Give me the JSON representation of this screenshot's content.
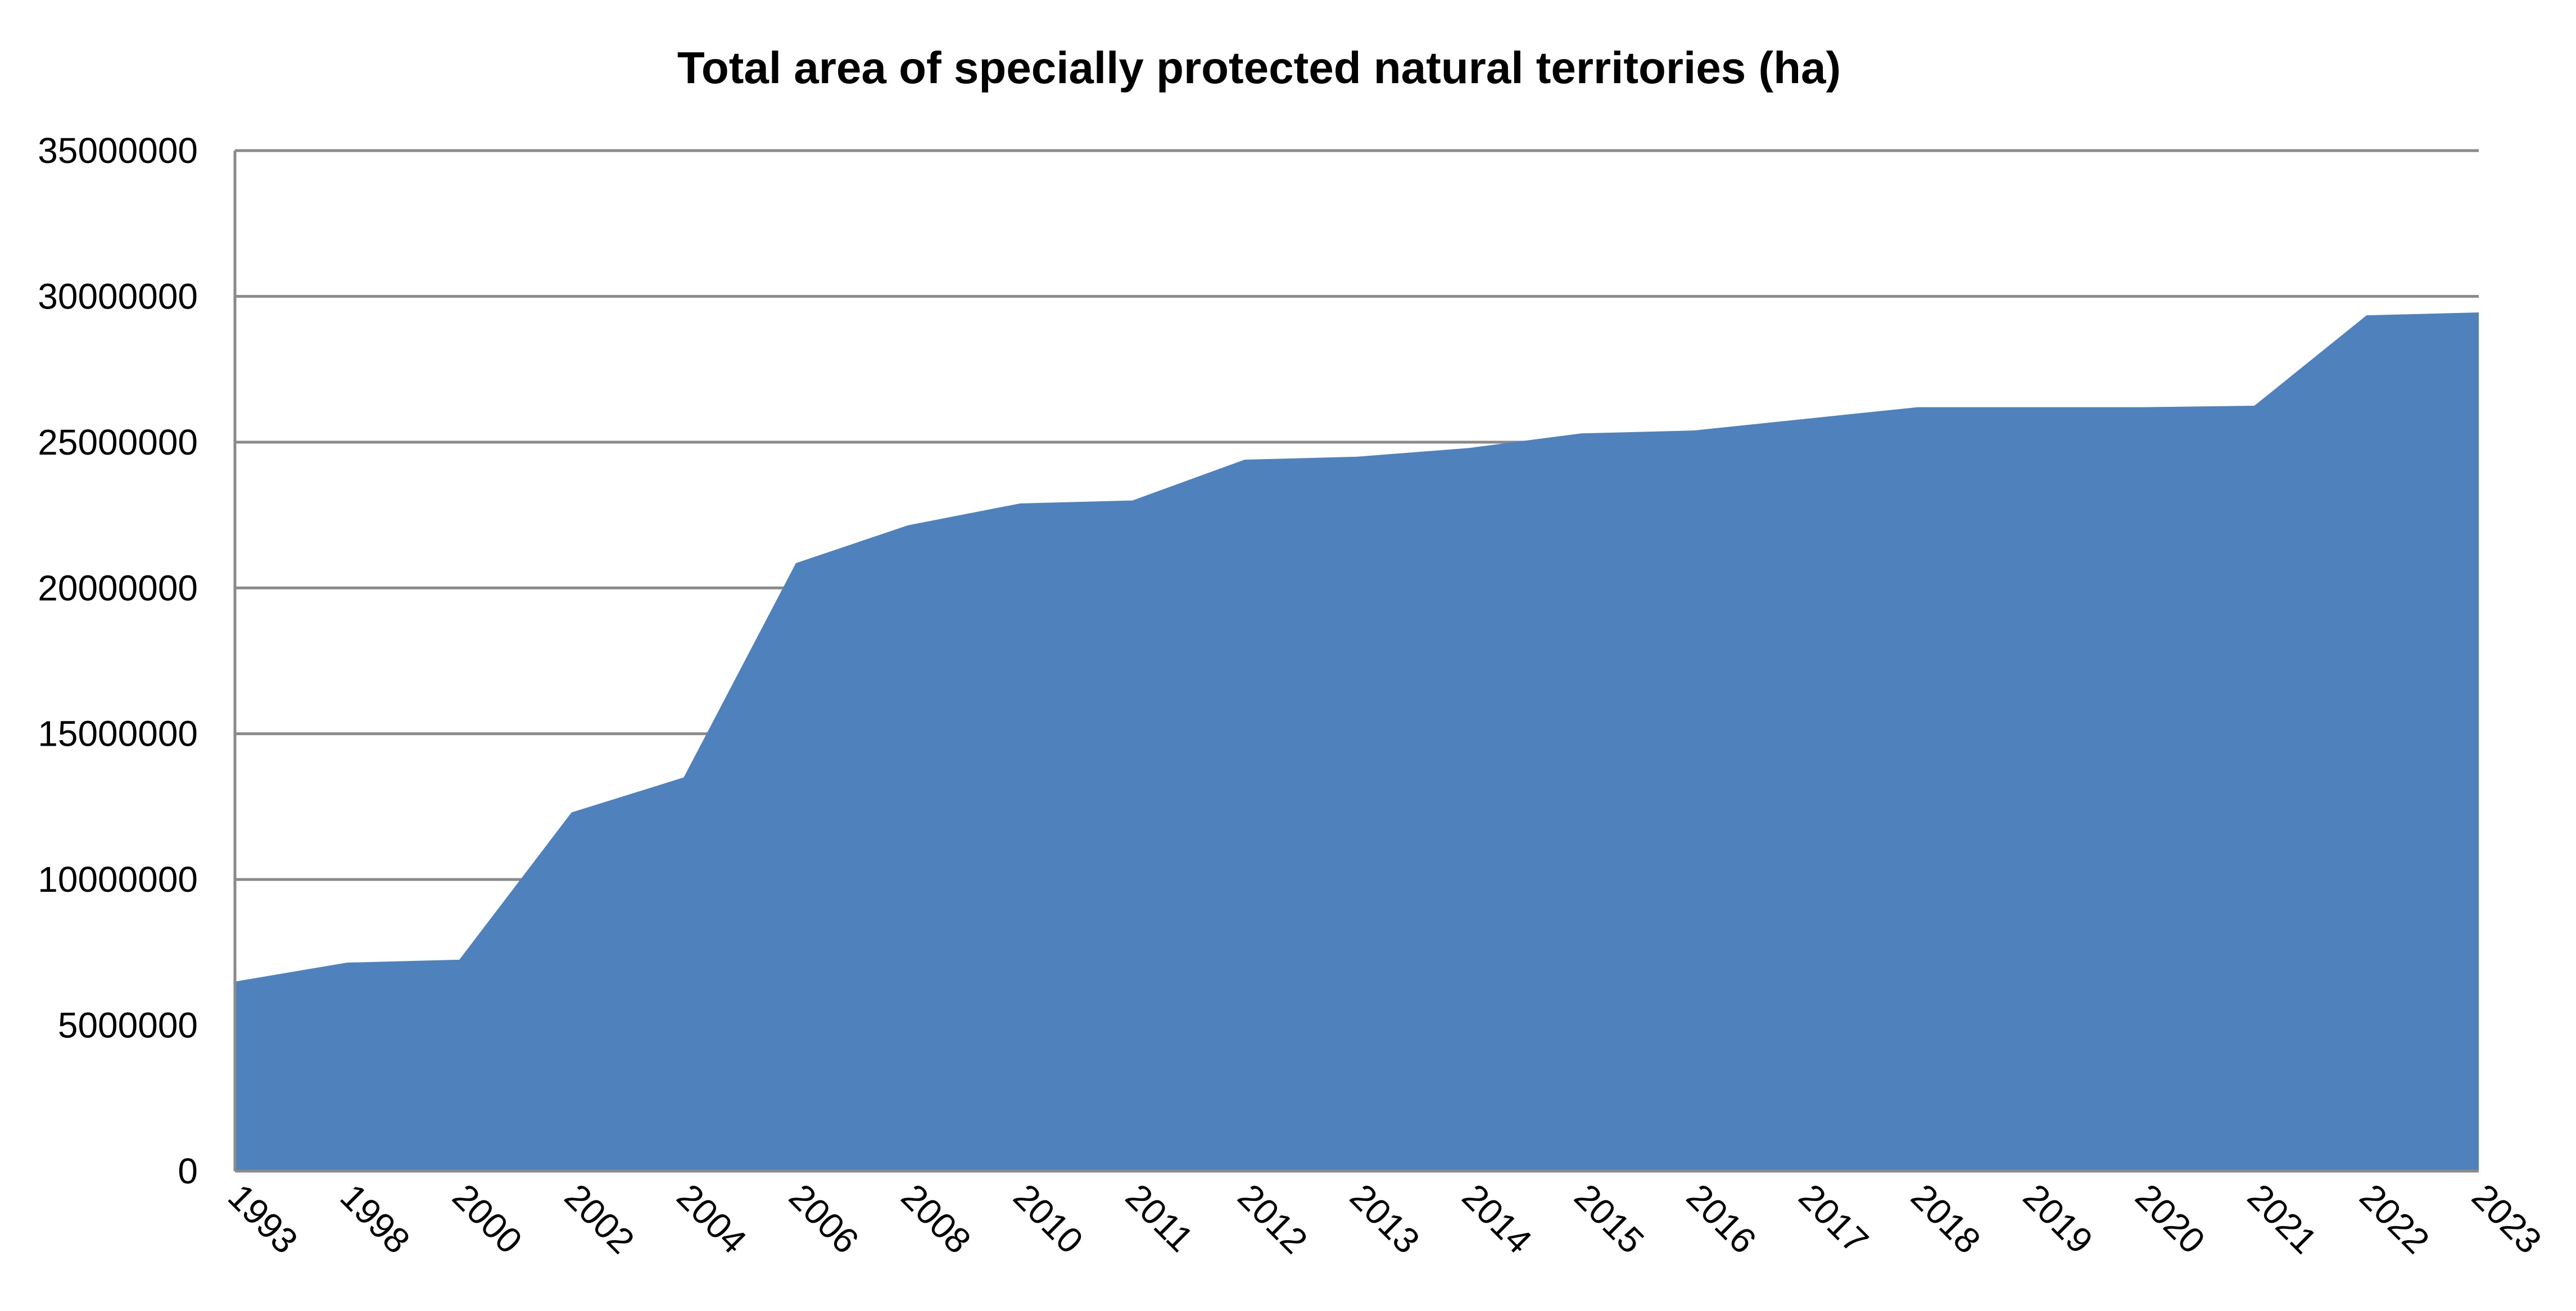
{
  "chart_data": {
    "type": "area",
    "title": "Total area of specially protected natural territories (ha)",
    "xlabel": "",
    "ylabel": "",
    "ylim": [
      0,
      35000000
    ],
    "yticks": [
      {
        "value": 0,
        "label": "0"
      },
      {
        "value": 5000000,
        "label": "5000000"
      },
      {
        "value": 10000000,
        "label": "10000000"
      },
      {
        "value": 15000000,
        "label": "15000000"
      },
      {
        "value": 20000000,
        "label": "20000000"
      },
      {
        "value": 25000000,
        "label": "25000000"
      },
      {
        "value": 30000000,
        "label": "30000000"
      },
      {
        "value": 35000000,
        "label": "35000000"
      }
    ],
    "categories": [
      "1993",
      "1998",
      "2000",
      "2002",
      "2004",
      "2006",
      "2008",
      "2010",
      "2011",
      "2012",
      "2013",
      "2014",
      "2015",
      "2016",
      "2017",
      "2018",
      "2019",
      "2020",
      "2021",
      "2022",
      "2023"
    ],
    "series": [
      {
        "values": [
          6500000,
          7150000,
          7250000,
          12300000,
          13500000,
          20850000,
          22150000,
          22900000,
          23000000,
          24400000,
          24500000,
          24800000,
          25300000,
          25400000,
          25800000,
          26200000,
          26200000,
          26200000,
          26250000,
          29350000,
          29450000
        ]
      }
    ],
    "grid": true,
    "legend": "none",
    "colors": {
      "area_fill": "#4f81bd",
      "gridline": "#8a8a8a",
      "text": "#000000"
    }
  }
}
